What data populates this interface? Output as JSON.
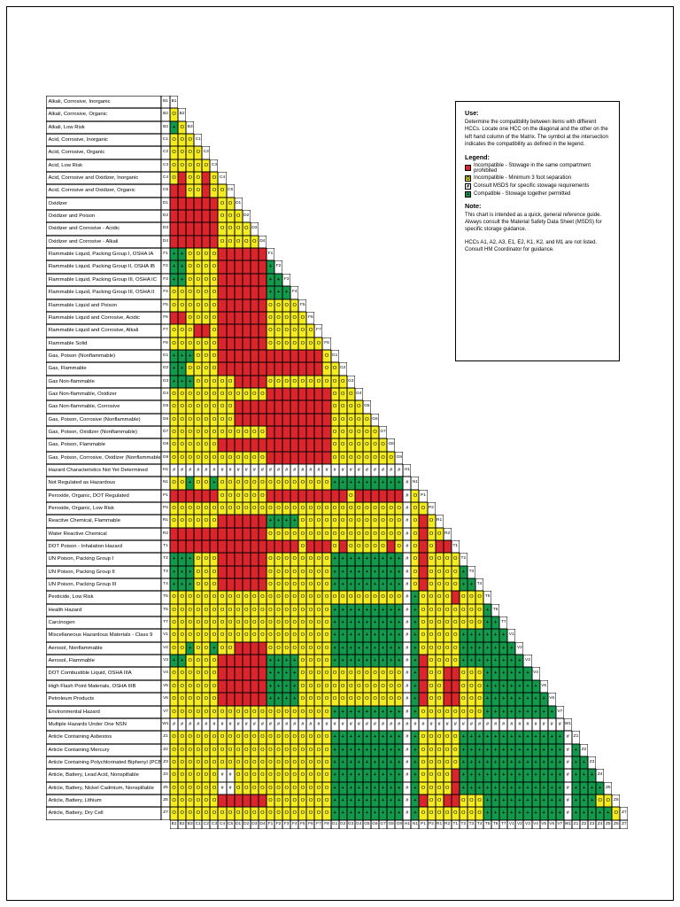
{
  "legend": {
    "use_title": "Use:",
    "use_text": "Determine the compatibility between items with different HCCs. Locate one HCC on the diagonal and the other on the left hand column of the Matrix. The symbol at the intersection indicates the compatibility as defined in the legend.",
    "legend_title": "Legend:",
    "items": [
      {
        "symbol": "",
        "color": "#d9252b",
        "label": "Incompatible - Stowage in the same compartment prohibited"
      },
      {
        "symbol": "O",
        "color": "#f4eb21",
        "label": "Incompatible - Minimum 3 foot separation"
      },
      {
        "symbol": "#",
        "color": "#ffffff",
        "label": "Consult MSDS for specific stowage requirements"
      },
      {
        "symbol": "+",
        "color": "#13994b",
        "label": "Compatible - Stowage together permitted"
      }
    ],
    "note_title": "Note:",
    "note_text": "This chart is intended as a quick, general reference guide. Always consult the Material Safety Data Sheet (MSDS) for specific storage guidance.",
    "footnote": "HCCs A1, A2, A3, E1, E2, K1, K2, and M1 are not listed. Consult HM Coordinator for guidance."
  },
  "colors": {
    "red": "#d9252b",
    "yellow": "#f4eb21",
    "green": "#13994b",
    "hash_bg": "#ffffff"
  },
  "symbols": {
    "R": "Incompatible - prohibited",
    "O": "Incompatible - 3 foot separation",
    "#": "Consult MSDS",
    "+": "Compatible"
  },
  "matrix": {
    "columns": [
      "B1",
      "B2",
      "B3",
      "C1",
      "C2",
      "C3",
      "C4",
      "C5",
      "D1",
      "D2",
      "D3",
      "D4",
      "F1",
      "F2",
      "F3",
      "F4",
      "F5",
      "F6",
      "F7",
      "F8",
      "G1",
      "G2",
      "G3",
      "G4",
      "G5",
      "G6",
      "G7",
      "G8",
      "G9",
      "H1",
      "N1",
      "P1",
      "P2",
      "R1",
      "R2",
      "T1",
      "T2",
      "T3",
      "T4",
      "T5",
      "T6",
      "T7",
      "V1",
      "V2",
      "V3",
      "V4",
      "V5",
      "V6",
      "V7",
      "W1",
      "Z1",
      "Z2",
      "Z3",
      "Z4",
      "Z5",
      "Z6",
      "Z7"
    ],
    "rows": [
      {
        "code": "B1",
        "label": "Alkali, Corrosive, Inorganic",
        "cells": ""
      },
      {
        "code": "B2",
        "label": "Alkali, Corrosive, Organic",
        "cells": "O"
      },
      {
        "code": "B3",
        "label": "Alkali, Low Risk",
        "cells": "+O"
      },
      {
        "code": "C1",
        "label": "Acid, Corrosive, Inorganic",
        "cells": "OOO"
      },
      {
        "code": "C2",
        "label": "Acid, Corrosive, Organic",
        "cells": "OOOO"
      },
      {
        "code": "C3",
        "label": "Acid, Low Risk",
        "cells": "OOOOO"
      },
      {
        "code": "C4",
        "label": "Acid, Corrosive and Oxidizer, Inorganic",
        "cells": "OROORO"
      },
      {
        "code": "C5",
        "label": "Acid, Corrosive and Oxidizer, Organic",
        "cells": "RROOROO"
      },
      {
        "code": "D1",
        "label": "Oxidizer",
        "cells": "RRRRRROO"
      },
      {
        "code": "D2",
        "label": "Oxidizer and Poison",
        "cells": "RRRRRROOO"
      },
      {
        "code": "D3",
        "label": "Oxidizer and Corrosive - Acidic",
        "cells": "RRRRRROOOO"
      },
      {
        "code": "D4",
        "label": "Oxidizer and Corrosive - Alkali",
        "cells": "RRRRRROOOOO"
      },
      {
        "code": "F1",
        "label": "Flammable Liquid, Packing Group I, OSHA IA",
        "cells": "++OOOORRRRRR"
      },
      {
        "code": "F2",
        "label": "Flammable Liquid, Packing Group II, OSHA IB",
        "cells": "++OOOORRRRRR+"
      },
      {
        "code": "F3",
        "label": "Flammable Liquid, Packing Group III, OSHA IC",
        "cells": "++OOOORRRRRR++"
      },
      {
        "code": "F4",
        "label": "Flammable Liquid, Packing Group III, OSHA II",
        "cells": "OOOOOORRRRRR+++"
      },
      {
        "code": "F5",
        "label": "Flammable Liquid and Poison",
        "cells": "OOOOOORRRRRROOOO"
      },
      {
        "code": "F6",
        "label": "Flammable Liquid and Corrosive, Acidic",
        "cells": "RROOOORRRRRROOOOO"
      },
      {
        "code": "F7",
        "label": "Flammable Liquid and Corrosive, Alkali",
        "cells": "OOORRORRRRRROOOOOO"
      },
      {
        "code": "F8",
        "label": "Flammable Solid",
        "cells": "OOOOOORRRRRROOOOOOO"
      },
      {
        "code": "G1",
        "label": "Gas, Poison (Nonflammable)",
        "cells": "+++OOORRRRRRRRRRRRRO"
      },
      {
        "code": "G2",
        "label": "Gas, Flammable",
        "cells": "++OOOORRRRRRRRRRRRROO"
      },
      {
        "code": "G3",
        "label": "Gas Non-flammable",
        "cells": "+++OOOOORRRROOOOOOOOOO"
      },
      {
        "code": "G4",
        "label": "Gas Non-flammable, Oxidizer",
        "cells": "OOOOOOOOOOOORRRRRRRROOO"
      },
      {
        "code": "G5",
        "label": "Gas Non-flammable, Corrosive",
        "cells": "OOOOOOOORRRRRRRRRRRROOOO"
      },
      {
        "code": "G6",
        "label": "Gas, Poison, Corrosive (Nonflammable)",
        "cells": "OOOOOOOORRRRRRRRRRRROOOOO"
      },
      {
        "code": "G7",
        "label": "Gas, Poison, Oxidizer (Nonflammable)",
        "cells": "OOOOOOOOOOOORRRRRRRROOOOOO"
      },
      {
        "code": "G8",
        "label": "Gas, Poison, Flammable",
        "cells": "OOOOOORRRRRRRRRRRRRROOOOOOO"
      },
      {
        "code": "G9",
        "label": "Gas, Poison, Corrosive, Oxidizer (Nonflammable)",
        "cells": "OOOOOOOOOOOORRRRRRRROOOOOOOO"
      },
      {
        "code": "H1",
        "label": "Hazard Characteristics Not Yet Determined",
        "cells": "#############################"
      },
      {
        "code": "N1",
        "label": "Not Regulated as Hazardous",
        "cells": "OO+OO+OOOOOOOOOOOOOO+++++++++#"
      },
      {
        "code": "P1",
        "label": "Peroxide, Organic, DOT Regulated",
        "cells": "RRRRRROOOOOORRRRRRRRRRORRRRRR#O"
      },
      {
        "code": "P2",
        "label": "Peroxide, Organic, Low Risk",
        "cells": "OOOOOOOOOOOOOOOOOOOOOOOOOOOOO#OO"
      },
      {
        "code": "R1",
        "label": "Reactive Chemical, Flammable",
        "cells": "OOOOOORRRRRR++++OOOOOOOOOOOOO#ORO"
      },
      {
        "code": "R2",
        "label": "Water Reactive Chemical",
        "cells": "RRRRRRRRRRRROOOOOOOOOOOOOOOOO#OROO"
      },
      {
        "code": "T1",
        "label": "DOT Poison - Inhalation Hazard",
        "cells": "RRRRRRRRRRRRRRRRORRROROOOOORO#ORORR"
      },
      {
        "code": "T2",
        "label": "UN Poison, Packing Group I",
        "cells": "+++OOORRRRRROOOOOOOO+++++++++#OROOOO"
      },
      {
        "code": "T3",
        "label": "UN Poison, Packing Group II",
        "cells": "+++OOORRRRRROOOOOOOO+++++++++#OROOOO+"
      },
      {
        "code": "T4",
        "label": "UN Poison, Packing Group III",
        "cells": "+++OOORRRRRROOOOOOOO+++++++++#OROOOO++"
      },
      {
        "code": "T5",
        "label": "Pesticide, Low Risk",
        "cells": "OOOOOOOOOOOOOOOOOOOOOOOOOOOOO#+OOOOROOO"
      },
      {
        "code": "T6",
        "label": "Health Hazard",
        "cells": "OOOOOOOOOOOOOOOOOOOO+++++++++#+OOOOOOOO+"
      },
      {
        "code": "T7",
        "label": "Carcinogen",
        "cells": "OOOOOOOOOOOOOOOOOOOO+++++++++#+OOOOOOOO++"
      },
      {
        "code": "V1",
        "label": "Miscellaneous Hazardous Materials - Class 9",
        "cells": "OOOOOOOOOOOOOOOOOOOO+++++++++#+OOOOO++++++"
      },
      {
        "code": "V2",
        "label": "Aerosol, Nonflammable",
        "cells": "OO+OO+OORRRROOOOOOOO+++++++++#+OOOOO+++++++"
      },
      {
        "code": "V3",
        "label": "Aerosol, Flammable",
        "cells": "++OOOORRRRRR++++OOOO+++++++++#+ROOOO++++++++"
      },
      {
        "code": "V4",
        "label": "DOT Combustible Liquid, OSHA IIIA",
        "cells": "OOOOOORRRRRR++++OOOOOOOOOOOOO#+ROORROOO++++++"
      },
      {
        "code": "V5",
        "label": "High Flash Point Materials, OSHA IIIB",
        "cells": "OOOOOORRRRRR++++OOOOOOOOOOOOO#+ROORROOO+++++++"
      },
      {
        "code": "V6",
        "label": "Petroleum Products",
        "cells": "OOOOOORRRRRR++++OOOOOOOOOOOOO#+ROORROOO++++++++"
      },
      {
        "code": "V7",
        "label": "Environmental Hazard",
        "cells": "OOOOOOOOOOOOOOOOOOOO+++++++++#+OOOOOOOO+++++++++"
      },
      {
        "code": "W1",
        "label": "Multiple Hazards Under One NSN",
        "cells": "#################################################"
      },
      {
        "code": "Z1",
        "label": "Article Containing Asbestos",
        "cells": "OOOOOOOOOOOOOOOOOOOO+++++++++#+OOOOO+++++++++++++#"
      },
      {
        "code": "Z2",
        "label": "Article Containing Mercury",
        "cells": "OOOOOOOOOOOOOOOOOOOO+++++++++#+OOOOO+++++++++++++#+"
      },
      {
        "code": "Z3",
        "label": "Article Containing Polychlorinated Biphenyl (PCB)",
        "cells": "OOOOOOOOOOOOOOOOOOOO+++++++++#+OOOOO+++++++++++++#++"
      },
      {
        "code": "Z4",
        "label": "Article, Battery, Lead Acid, Nonspillable",
        "cells": "OOOOOO##OOOOOOOOOOOO+++++++++#+OOOOR+++++++++++++#+++"
      },
      {
        "code": "Z5",
        "label": "Article, Battery, Nickel Cadmium, Nonspillable",
        "cells": "OOOOOO##OOOOOOOOOOOO+++++++++#+OOOOR+++++++++++++#++++"
      },
      {
        "code": "Z6",
        "label": "Article, Battery, Lithium",
        "cells": "OOOOOORRRRRROOOOOOOO+++++++++#+ROORROOO++++++++++#+++OO"
      },
      {
        "code": "Z7",
        "label": "Article, Battery, Dry Cell",
        "cells": "OOOOOOOOOOOOOOOOOOOO+++++++++#+OOOOOOOO++++++++++#+++++O"
      }
    ]
  }
}
